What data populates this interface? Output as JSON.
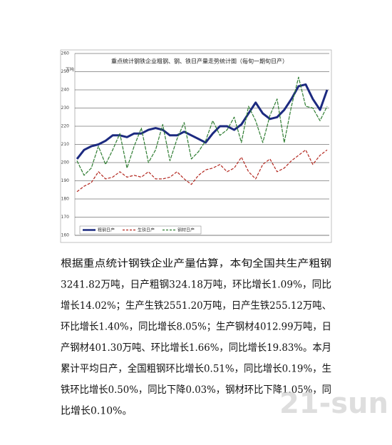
{
  "chart_data": {
    "type": "line",
    "title": "重点统计钢铁企业粗钢、钢、铁日产量走势统计图（每旬一期旬日产）",
    "y_label": "万吨",
    "ylim": [
      160,
      260
    ],
    "yticks": [
      160,
      170,
      180,
      190,
      200,
      210,
      220,
      230,
      240,
      250,
      260
    ],
    "grid": true,
    "series": [
      {
        "name": "粗钢日产",
        "color": "#1c2a80",
        "style": "solid",
        "values": [
          202,
          207,
          209,
          210,
          212,
          215,
          215,
          214,
          216,
          216,
          218,
          219,
          218,
          215,
          215,
          217,
          215,
          213,
          211,
          216,
          220,
          220,
          218,
          221,
          227,
          233,
          227,
          224,
          225,
          229,
          235,
          242,
          243,
          235,
          229,
          240
        ]
      },
      {
        "name": "生铁日产",
        "color": "#b3261e",
        "style": "dashed",
        "values": [
          184,
          187,
          189,
          195,
          191,
          192,
          195,
          192,
          193,
          192,
          195,
          191,
          191,
          192,
          195,
          191,
          188,
          193,
          196,
          197,
          199,
          195,
          197,
          203,
          195,
          191,
          199,
          202,
          195,
          197,
          201,
          204,
          207,
          199,
          204,
          207
        ]
      },
      {
        "name": "钢材日产",
        "color": "#2f7d32",
        "style": "dashed",
        "values": [
          201,
          193,
          197,
          209,
          199,
          207,
          216,
          197,
          209,
          219,
          200,
          207,
          221,
          201,
          213,
          222,
          202,
          206,
          212,
          223,
          215,
          218,
          225,
          211,
          231,
          223,
          211,
          226,
          235,
          211,
          231,
          247,
          231,
          230,
          223,
          231
        ]
      }
    ]
  },
  "document": {
    "lines": [
      "根据重点统计钢铁企业产量估算，本旬全国共生产粗钢",
      "3241.82万吨，日产粗钢324.18万吨，环比增长1.09%，同比",
      "增长14.02%；生产生铁2551.20万吨，日产生铁255.12万吨、",
      "环比增长1.40%，同比增长8.05%；生产钢材4012.99万吨，日",
      "产钢材401.30万吨、环比增长1.66%，同比增长19.83%。本月",
      "累计平均日产，全国粗钢环比增长0.51%，同比增长0.19%，生",
      "铁环比增长0.50%，同比下降0.03%，钢材环比下降1.05%，同",
      "比增长0.10%。"
    ],
    "watermark": "21-sun"
  }
}
